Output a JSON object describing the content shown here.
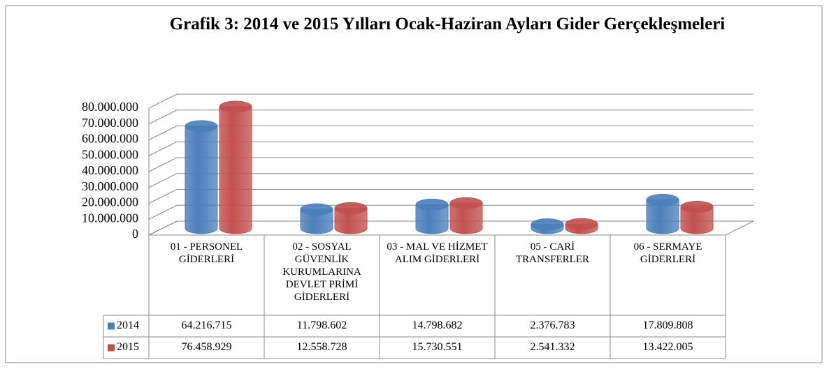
{
  "chart_data": {
    "type": "bar3d",
    "title": "Grafik 3:   2014 ve 2015 Yılları Ocak-Haziran Ayları Gider Gerçekleşmeleri",
    "categories": [
      "01 - PERSONEL GİDERLERİ",
      "02 - SOSYAL GÜVENLİK KURUMLARINA DEVLET PRİMİ GİDERLERİ",
      "03 - MAL VE HİZMET ALIM GİDERLERİ",
      "05 - CARİ TRANSFERLER",
      "06 - SERMAYE GİDERLERİ"
    ],
    "series": [
      {
        "name": "2014",
        "color": "#4a7ebb",
        "values": [
          64216715,
          11798602,
          14798682,
          2376783,
          17809808
        ],
        "value_labels": [
          "64.216.715",
          "11.798.602",
          "14.798.682",
          "2.376.783",
          "17.809.808"
        ]
      },
      {
        "name": "2015",
        "color": "#c0504d",
        "values": [
          76458929,
          12558728,
          15730551,
          2541332,
          13422005
        ],
        "value_labels": [
          "76.458.929",
          "12.558.728",
          "15.730.551",
          "2.541.332",
          "13.422.005"
        ]
      }
    ],
    "ylim": [
      0,
      80000000
    ],
    "yticks": [
      0,
      {
        "value": 10000000,
        "label": "10.000.000"
      },
      {
        "value": 20000000,
        "label": "20.000.000"
      },
      {
        "value": 30000000,
        "label": "30.000.000"
      },
      {
        "value": 40000000,
        "label": "40.000.000"
      },
      {
        "value": 50000000,
        "label": "50.000.000"
      },
      {
        "value": 60000000,
        "label": "60.000.000"
      },
      {
        "value": 70000000,
        "label": "70.000.000"
      },
      {
        "value": 80000000,
        "label": "80.000.000"
      }
    ],
    "grid": true,
    "data_table": true
  }
}
